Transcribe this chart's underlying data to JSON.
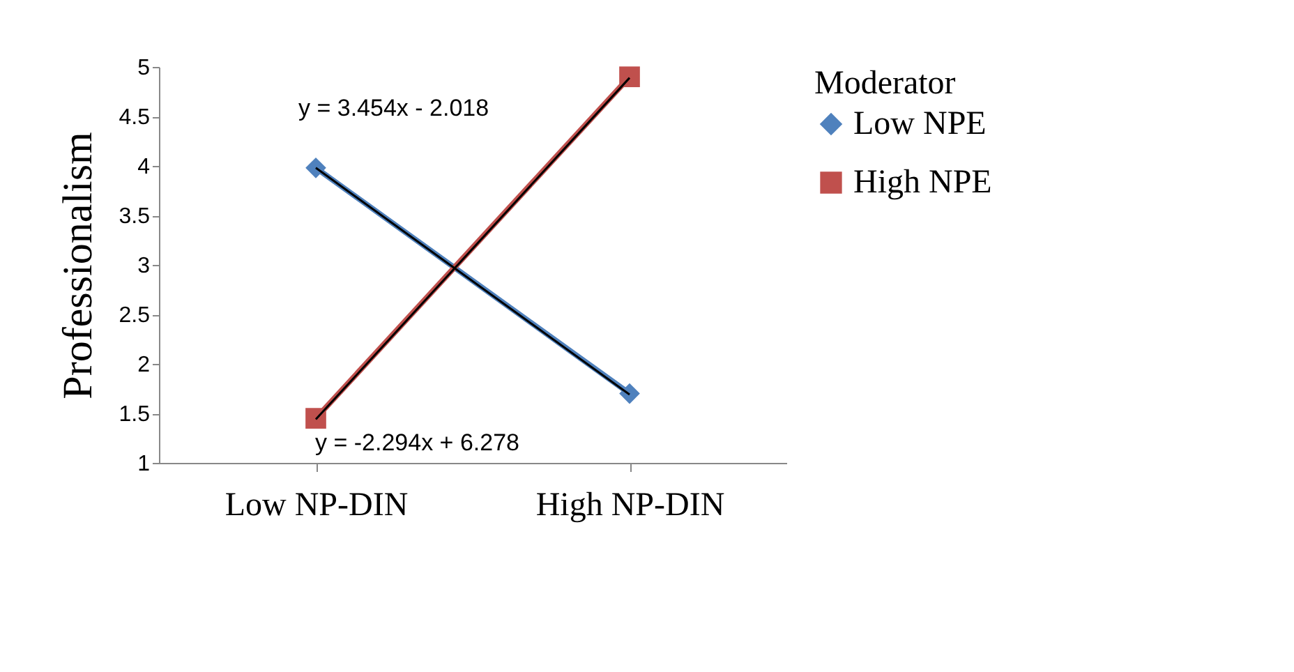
{
  "chart_data": {
    "type": "line",
    "ylabel": "Professionalism",
    "legend_title": "Moderator",
    "legend": "right",
    "grid": false,
    "categories": [
      "Low NP-DIN",
      "High NP-DIN"
    ],
    "ylim": [
      1,
      5
    ],
    "yticks": [
      1,
      1.5,
      2,
      2.5,
      3,
      3.5,
      4,
      4.5,
      5
    ],
    "series": [
      {
        "name": "Low NPE",
        "color": "#4f81bd",
        "marker": "diamond",
        "values": [
          3.98,
          1.7
        ]
      },
      {
        "name": "High NPE",
        "color": "#c0504d",
        "marker": "square",
        "values": [
          1.45,
          4.9
        ]
      },
      {
        "color": "#000000",
        "marker": "none",
        "values": [
          1.44,
          4.89
        ]
      },
      {
        "color": "#000000",
        "marker": "none",
        "values": [
          3.98,
          1.69
        ]
      }
    ],
    "annotations": [
      "y = 3.454x - 2.018",
      "y = -2.294x + 6.278"
    ]
  }
}
